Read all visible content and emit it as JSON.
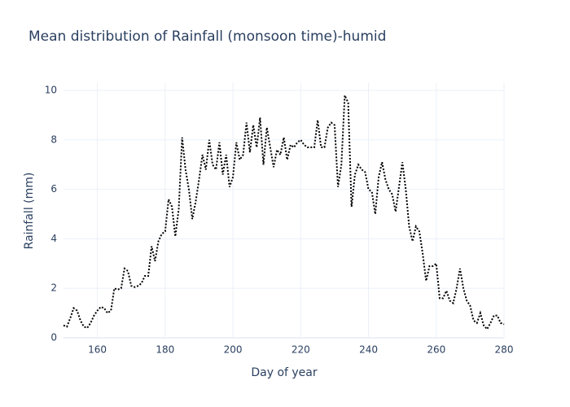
{
  "chart_data": {
    "type": "line",
    "title": "Mean distribution of Rainfall (monsoon time)-humid",
    "x_label": "Day of year",
    "y_label": "Rainfall (mm)",
    "x": [
      150,
      151,
      152,
      153,
      154,
      155,
      156,
      157,
      158,
      159,
      160,
      161,
      162,
      163,
      164,
      165,
      166,
      167,
      168,
      169,
      170,
      171,
      172,
      173,
      174,
      175,
      176,
      177,
      178,
      179,
      180,
      181,
      182,
      183,
      184,
      185,
      186,
      187,
      188,
      189,
      190,
      191,
      192,
      193,
      194,
      195,
      196,
      197,
      198,
      199,
      200,
      201,
      202,
      203,
      204,
      205,
      206,
      207,
      208,
      209,
      210,
      211,
      212,
      213,
      214,
      215,
      216,
      217,
      218,
      219,
      220,
      221,
      222,
      223,
      224,
      225,
      226,
      227,
      228,
      229,
      230,
      231,
      232,
      233,
      234,
      235,
      236,
      237,
      238,
      239,
      240,
      241,
      242,
      243,
      244,
      245,
      246,
      247,
      248,
      249,
      250,
      251,
      252,
      253,
      254,
      255,
      256,
      257,
      258,
      259,
      260,
      261,
      262,
      263,
      264,
      265,
      266,
      267,
      268,
      269,
      270,
      271,
      272,
      273,
      274,
      275,
      276,
      277,
      278,
      279,
      280
    ],
    "series": [
      {
        "color": "#000000",
        "values": [
          0.5,
          0.45,
          0.8,
          1.2,
          1.1,
          0.7,
          0.45,
          0.4,
          0.6,
          0.9,
          1.1,
          1.25,
          1.2,
          1.0,
          1.1,
          2.0,
          1.95,
          2.0,
          2.8,
          2.7,
          2.1,
          2.05,
          2.1,
          2.2,
          2.5,
          2.5,
          3.7,
          3.1,
          3.9,
          4.2,
          4.3,
          5.6,
          5.3,
          4.1,
          5.2,
          8.1,
          6.8,
          6.0,
          4.8,
          5.5,
          6.4,
          7.4,
          6.8,
          8.0,
          7.0,
          6.8,
          7.9,
          6.6,
          7.4,
          6.1,
          6.5,
          7.9,
          7.2,
          7.4,
          8.7,
          7.5,
          8.6,
          7.7,
          8.9,
          7.0,
          8.5,
          7.7,
          6.9,
          7.6,
          7.4,
          8.1,
          7.2,
          7.8,
          7.7,
          7.9,
          8.0,
          7.8,
          7.7,
          7.7,
          7.7,
          8.8,
          7.7,
          7.7,
          8.5,
          8.7,
          8.6,
          6.1,
          7.0,
          9.8,
          9.5,
          5.3,
          6.6,
          7.0,
          6.8,
          6.7,
          6.0,
          5.9,
          5.0,
          6.5,
          7.1,
          6.4,
          6.0,
          5.8,
          5.1,
          6.1,
          7.1,
          6.0,
          4.5,
          3.9,
          4.5,
          4.3,
          3.4,
          2.3,
          2.9,
          2.9,
          3.0,
          1.6,
          1.6,
          1.9,
          1.5,
          1.4,
          2.0,
          2.8,
          2.0,
          1.5,
          1.3,
          0.7,
          0.6,
          1.0,
          0.5,
          0.35,
          0.6,
          0.9,
          0.9,
          0.6,
          0.55
        ]
      }
    ],
    "xlim": [
      150,
      280
    ],
    "xticks": [
      160,
      180,
      200,
      220,
      240,
      260,
      280
    ],
    "ylim": [
      0,
      10.3
    ],
    "yticks": [
      0,
      2,
      4,
      6,
      8,
      10
    ],
    "grid": true
  }
}
